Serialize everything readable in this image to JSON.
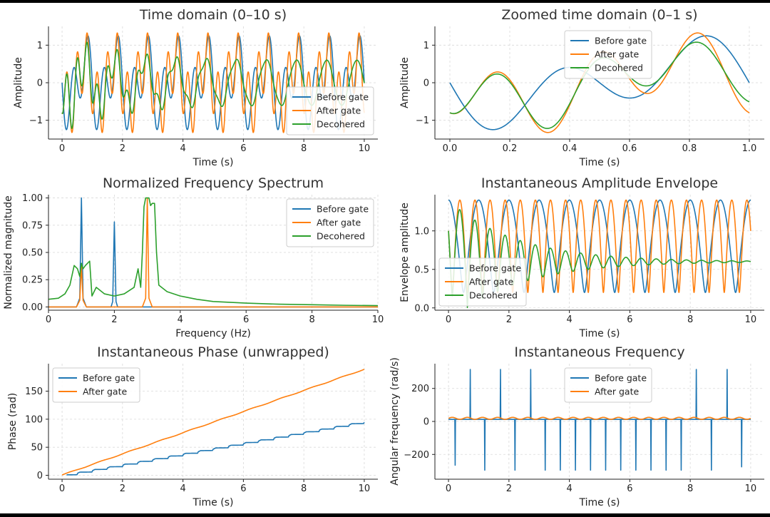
{
  "colors": {
    "before": "#1f77b4",
    "after": "#ff7f0e",
    "decohered": "#2ca02c"
  },
  "chart_data": [
    {
      "type": "line",
      "title": "Time domain (0–10 s)",
      "xlabel": "Time (s)",
      "ylabel": "Amplitude",
      "xlim": [
        -0.45,
        10.45
      ],
      "ylim": [
        -1.5,
        1.5
      ],
      "xticks": [
        0,
        2,
        4,
        6,
        8,
        10
      ],
      "xtick_labels": [
        "0",
        "2",
        "4",
        "6",
        "8",
        "10"
      ],
      "yticks": [
        -1,
        0,
        1
      ],
      "ytick_labels": [
        "−1",
        "0",
        "1"
      ],
      "grid": true,
      "legend_loc": "lower-right",
      "series": [
        {
          "name": "Before gate",
          "key": "before",
          "x_range": [
            0,
            10
          ],
          "samples": 1200,
          "model": "sum",
          "terms": [
            {
              "amp": 0.6,
              "freq": 1,
              "phase": 1.5708
            },
            {
              "amp": 0.8,
              "freq": 2,
              "phase": 1.5708
            }
          ]
        },
        {
          "name": "After gate",
          "key": "after",
          "x_range": [
            0,
            10
          ],
          "samples": 1200,
          "model": "sum",
          "terms": [
            {
              "amp": 0.6,
              "freq": 1,
              "phase": 1.5708
            },
            {
              "amp": 0.8,
              "freq": 3,
              "phase": 3.1416
            }
          ]
        },
        {
          "name": "Decohered",
          "key": "decohered",
          "x_range": [
            0,
            10
          ],
          "samples": 1200,
          "model": "sum_decay",
          "terms": [
            {
              "amp": 0.6,
              "freq": 1,
              "phase": 1.5708,
              "decay": 0.0
            },
            {
              "amp": 0.8,
              "freq": 3,
              "phase": 3.1416,
              "decay": 0.45
            }
          ]
        }
      ]
    },
    {
      "type": "line",
      "title": "Zoomed time domain (0–1 s)",
      "xlabel": "Time (s)",
      "ylabel": "Amplitude",
      "xlim": [
        -0.05,
        1.05
      ],
      "ylim": [
        -1.5,
        1.5
      ],
      "xticks": [
        0,
        0.2,
        0.4,
        0.6,
        0.8,
        1.0
      ],
      "xtick_labels": [
        "0.0",
        "0.2",
        "0.4",
        "0.6",
        "0.8",
        "1.0"
      ],
      "yticks": [
        -1,
        0,
        1
      ],
      "ytick_labels": [
        "−1",
        "0",
        "1"
      ],
      "grid": true,
      "legend_loc": "upper-center",
      "series": [
        {
          "name": "Before gate",
          "key": "before",
          "x_range": [
            0,
            1
          ],
          "samples": 300,
          "model": "sum",
          "terms": [
            {
              "amp": 0.6,
              "freq": 1,
              "phase": 1.5708
            },
            {
              "amp": 0.8,
              "freq": 2,
              "phase": 1.5708
            }
          ]
        },
        {
          "name": "After gate",
          "key": "after",
          "x_range": [
            0,
            1
          ],
          "samples": 300,
          "model": "sum",
          "terms": [
            {
              "amp": 0.6,
              "freq": 1,
              "phase": 1.5708
            },
            {
              "amp": 0.8,
              "freq": 3,
              "phase": 3.1416
            }
          ]
        },
        {
          "name": "Decohered",
          "key": "decohered",
          "x_range": [
            0,
            1
          ],
          "samples": 300,
          "model": "sum_decay",
          "terms": [
            {
              "amp": 0.6,
              "freq": 1,
              "phase": 1.5708,
              "decay": 0.0
            },
            {
              "amp": 0.8,
              "freq": 3,
              "phase": 3.1416,
              "decay": 0.45
            }
          ]
        }
      ]
    },
    {
      "type": "line",
      "title": "Normalized Frequency Spectrum",
      "xlabel": "Frequency (Hz)",
      "ylabel": "Normalized magnitude",
      "xlim": [
        0,
        10
      ],
      "ylim": [
        -0.03,
        1.03
      ],
      "xticks": [
        0,
        2,
        4,
        6,
        8,
        10
      ],
      "xtick_labels": [
        "0",
        "2",
        "4",
        "6",
        "8",
        "10"
      ],
      "yticks": [
        0,
        0.25,
        0.5,
        0.75,
        1.0
      ],
      "ytick_labels": [
        "0.00",
        "0.25",
        "0.50",
        "0.75",
        "1.00"
      ],
      "grid": true,
      "legend_loc": "upper-right",
      "series": [
        {
          "name": "Before gate",
          "key": "before",
          "x": [
            0,
            0.85,
            0.95,
            1.0,
            1.05,
            1.15,
            1.9,
            1.95,
            2.0,
            2.05,
            2.1,
            10
          ],
          "y": [
            0,
            0,
            0.08,
            1.0,
            0.08,
            0,
            0,
            0.05,
            0.78,
            0.05,
            0,
            0
          ]
        },
        {
          "name": "After gate",
          "key": "after",
          "x": [
            0,
            0.85,
            0.95,
            1.0,
            1.05,
            1.15,
            2.85,
            2.95,
            3.0,
            3.05,
            3.15,
            10
          ],
          "y": [
            0,
            0,
            0.06,
            0.38,
            0.06,
            0,
            0,
            0.08,
            1.0,
            0.08,
            0,
            0
          ]
        },
        {
          "name": "Decohered",
          "key": "decohered",
          "x": [
            0,
            0.3,
            0.5,
            0.65,
            0.78,
            0.88,
            0.95,
            1.0,
            1.05,
            1.12,
            1.25,
            1.32,
            1.45,
            1.7,
            2.0,
            2.3,
            2.6,
            2.72,
            2.8,
            2.85,
            2.9,
            2.95,
            3.05,
            3.1,
            3.15,
            3.22,
            3.28,
            3.35,
            3.6,
            4.0,
            4.5,
            5.0,
            6.0,
            7.0,
            8.0,
            9.0,
            10.0
          ],
          "y": [
            0.07,
            0.08,
            0.12,
            0.2,
            0.38,
            0.35,
            0.28,
            0.4,
            0.35,
            0.38,
            0.42,
            0.1,
            0.18,
            0.12,
            0.1,
            0.12,
            0.18,
            0.35,
            0.18,
            0.5,
            0.92,
            1.0,
            1.0,
            0.93,
            0.95,
            0.95,
            0.5,
            0.2,
            0.14,
            0.1,
            0.07,
            0.05,
            0.035,
            0.025,
            0.02,
            0.015,
            0.012
          ]
        }
      ]
    },
    {
      "type": "line",
      "title": "Instantaneous Amplitude Envelope",
      "xlabel": "Time (s)",
      "ylabel": "Envelope amplitude",
      "xlim": [
        -0.45,
        10.45
      ],
      "ylim": [
        -0.03,
        1.47
      ],
      "xticks": [
        0,
        2,
        4,
        6,
        8,
        10
      ],
      "xtick_labels": [
        "0",
        "2",
        "4",
        "6",
        "8",
        "10"
      ],
      "yticks": [
        0,
        0.5,
        1.0
      ],
      "ytick_labels": [
        "0.0",
        "0.5",
        "1.0"
      ],
      "grid": true,
      "legend_loc": "lower-left",
      "series": [
        {
          "name": "Before gate",
          "key": "before",
          "x_range": [
            0,
            10
          ],
          "samples": 1600,
          "model": "envelope",
          "terms": [
            {
              "amp": 0.6,
              "freq": 1,
              "phase": 1.5708
            },
            {
              "amp": 0.8,
              "freq": 2,
              "phase": 1.5708
            }
          ]
        },
        {
          "name": "After gate",
          "key": "after",
          "x_range": [
            0,
            10
          ],
          "samples": 1600,
          "model": "envelope",
          "terms": [
            {
              "amp": 0.6,
              "freq": 1,
              "phase": 1.5708
            },
            {
              "amp": 0.8,
              "freq": 3,
              "phase": 3.1416
            }
          ]
        },
        {
          "name": "Decohered",
          "key": "decohered",
          "x_range": [
            0,
            10
          ],
          "samples": 1600,
          "model": "envelope_decay",
          "terms": [
            {
              "amp": 0.6,
              "freq": 1,
              "phase": 1.5708,
              "decay": 0.0
            },
            {
              "amp": 0.8,
              "freq": 3,
              "phase": 3.1416,
              "decay": 0.45
            }
          ]
        }
      ]
    },
    {
      "type": "line",
      "title": "Instantaneous Phase (unwrapped)",
      "xlabel": "Time (s)",
      "ylabel": "Phase (rad)",
      "xlim": [
        -0.45,
        10.45
      ],
      "ylim": [
        -7,
        199
      ],
      "xticks": [
        0,
        2,
        4,
        6,
        8,
        10
      ],
      "xtick_labels": [
        "0",
        "2",
        "4",
        "6",
        "8",
        "10"
      ],
      "yticks": [
        0,
        50,
        100,
        150
      ],
      "ytick_labels": [
        "0",
        "50",
        "100",
        "150"
      ],
      "grid": true,
      "legend_loc": "upper-left",
      "series": [
        {
          "name": "Before gate",
          "key": "before",
          "x_range": [
            0.15,
            10
          ],
          "samples": 400,
          "model": "staircase",
          "slope": 9.6,
          "offset": -1.5,
          "step_period": 0.5,
          "step_height": 2.2
        },
        {
          "name": "After gate",
          "key": "after",
          "x_range": [
            0,
            10
          ],
          "samples": 400,
          "model": "linear_ripple",
          "slope": 18.85,
          "offset": 0.5,
          "ripple": 0.6,
          "ripple_freq": 1
        }
      ]
    },
    {
      "type": "line",
      "title": "Instantaneous Frequency",
      "xlabel": "Time (s)",
      "ylabel": "Angular frequency (rad/s)",
      "xlim": [
        -0.45,
        10.45
      ],
      "ylim": [
        -350,
        350
      ],
      "xticks": [
        0,
        2,
        4,
        6,
        8,
        10
      ],
      "xtick_labels": [
        "0",
        "2",
        "4",
        "6",
        "8",
        "10"
      ],
      "yticks": [
        -200,
        0,
        200
      ],
      "ytick_labels": [
        "−200",
        "0",
        "200"
      ],
      "grid": true,
      "legend_loc": "upper-center",
      "series": [
        {
          "name": "Before gate",
          "key": "before",
          "model": "spikes",
          "baseline": 12.6,
          "spikes": [
            [
              0.22,
              -265
            ],
            [
              0.72,
              315
            ],
            [
              1.2,
              -295
            ],
            [
              1.72,
              315
            ],
            [
              2.2,
              -295
            ],
            [
              2.72,
              315
            ],
            [
              3.2,
              -295
            ],
            [
              3.7,
              -295
            ],
            [
              4.2,
              -295
            ],
            [
              4.7,
              -295
            ],
            [
              5.2,
              -295
            ],
            [
              5.7,
              -295
            ],
            [
              6.2,
              -295
            ],
            [
              6.7,
              -295
            ],
            [
              7.2,
              -295
            ],
            [
              7.7,
              -295
            ],
            [
              8.2,
              315
            ],
            [
              8.7,
              -295
            ],
            [
              9.22,
              315
            ],
            [
              9.7,
              -275
            ]
          ]
        },
        {
          "name": "After gate",
          "key": "after",
          "model": "ripple",
          "baseline": 18.85,
          "ripple": 6,
          "ripple_freq": 2
        }
      ]
    }
  ]
}
